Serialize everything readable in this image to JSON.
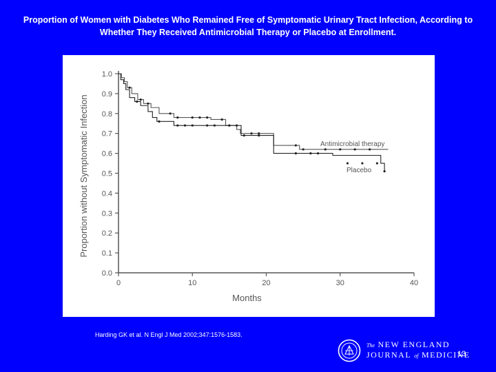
{
  "slide": {
    "title_line1": "Proportion of Women with Diabetes Who Remained Free of Symptomatic Urinary Tract Infection, According to",
    "title_line2": "Whether They Received Antimicrobial Therapy or Placebo at Enrollment.",
    "citation": "Harding GK et al. N Engl J Med 2002;347:1576-1583.",
    "journal": {
      "the": "The",
      "new_england": "NEW ENGLAND",
      "journal_of": "JOURNAL",
      "of": "of",
      "medicine": "MEDICINE"
    },
    "page_number": "13",
    "background_color": "#0000ff",
    "text_color": "#ffffff"
  },
  "chart_data": {
    "type": "line",
    "subtype": "kaplan-meier step",
    "xlabel": "Months",
    "ylabel": "Proportion without Symptomatic Infection",
    "xlim": [
      0,
      40
    ],
    "ylim": [
      0,
      1.0
    ],
    "xticks": [
      0,
      10,
      20,
      30,
      40
    ],
    "yticks": [
      0.0,
      0.1,
      0.2,
      0.3,
      0.4,
      0.5,
      0.6,
      0.7,
      0.8,
      0.9,
      1.0
    ],
    "ytick_labels": [
      "0.0",
      "0.1",
      "0.2",
      "0.3",
      "0.4",
      "0.5",
      "0.6",
      "0.7",
      "0.8",
      "0.9",
      "1.0"
    ],
    "xtick_labels": [
      "0",
      "10",
      "20",
      "30",
      "40"
    ],
    "series": [
      {
        "name": "Antimicrobial therapy",
        "line_color": "#555555",
        "steps": [
          [
            0,
            1.0
          ],
          [
            0.4,
            0.98
          ],
          [
            0.8,
            0.96
          ],
          [
            1.2,
            0.93
          ],
          [
            1.8,
            0.9
          ],
          [
            2.6,
            0.87
          ],
          [
            3.4,
            0.85
          ],
          [
            4.4,
            0.83
          ],
          [
            5.5,
            0.8
          ],
          [
            7.5,
            0.78
          ],
          [
            12.5,
            0.77
          ],
          [
            14.5,
            0.74
          ],
          [
            16,
            0.72
          ],
          [
            16.5,
            0.7
          ],
          [
            21,
            0.64
          ],
          [
            24.5,
            0.62
          ],
          [
            36.5,
            0.62
          ]
        ],
        "censored": [
          [
            1.5,
            0.93
          ],
          [
            3.0,
            0.87
          ],
          [
            4.0,
            0.85
          ],
          [
            7,
            0.8
          ],
          [
            8,
            0.78
          ],
          [
            10,
            0.78
          ],
          [
            11,
            0.78
          ],
          [
            12,
            0.78
          ],
          [
            14,
            0.77
          ],
          [
            15,
            0.74
          ],
          [
            18,
            0.7
          ],
          [
            19,
            0.7
          ],
          [
            24,
            0.64
          ],
          [
            25,
            0.62
          ],
          [
            28,
            0.62
          ],
          [
            30,
            0.62
          ],
          [
            32,
            0.62
          ],
          [
            34,
            0.62
          ]
        ]
      },
      {
        "name": "Placebo",
        "line_color": "#222222",
        "steps": [
          [
            0,
            1.0
          ],
          [
            0.3,
            0.97
          ],
          [
            0.7,
            0.95
          ],
          [
            1.0,
            0.92
          ],
          [
            1.5,
            0.88
          ],
          [
            2.2,
            0.86
          ],
          [
            3.0,
            0.84
          ],
          [
            4.0,
            0.81
          ],
          [
            4.6,
            0.78
          ],
          [
            5.2,
            0.76
          ],
          [
            7.5,
            0.74
          ],
          [
            16.6,
            0.69
          ],
          [
            21,
            0.6
          ],
          [
            29,
            0.59
          ],
          [
            35.5,
            0.55
          ],
          [
            36,
            0.51
          ]
        ],
        "censored": [
          [
            2.5,
            0.86
          ],
          [
            5.5,
            0.76
          ],
          [
            8,
            0.74
          ],
          [
            9,
            0.74
          ],
          [
            10,
            0.74
          ],
          [
            12,
            0.74
          ],
          [
            13,
            0.74
          ],
          [
            15,
            0.74
          ],
          [
            16,
            0.74
          ],
          [
            17,
            0.69
          ],
          [
            19,
            0.69
          ],
          [
            24,
            0.6
          ],
          [
            26,
            0.6
          ],
          [
            27,
            0.6
          ],
          [
            31,
            0.55
          ],
          [
            33,
            0.55
          ],
          [
            35,
            0.55
          ],
          [
            36,
            0.51
          ]
        ]
      }
    ]
  }
}
